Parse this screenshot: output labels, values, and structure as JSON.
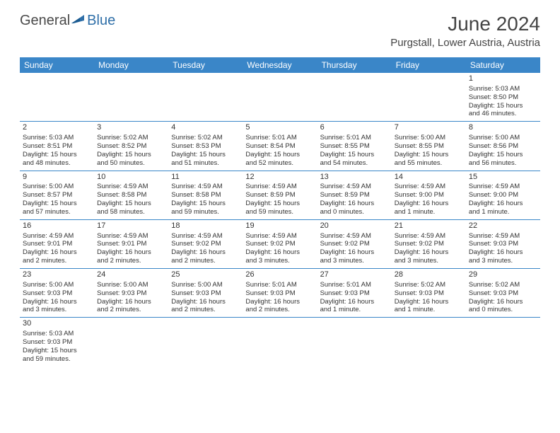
{
  "logo": {
    "part1": "General",
    "part2": "Blue"
  },
  "title": "June 2024",
  "location": "Purgstall, Lower Austria, Austria",
  "colors": {
    "header_bg": "#3a86c8",
    "header_text": "#ffffff",
    "body_text": "#333333",
    "line": "#3a86c8",
    "logo_gray": "#4a4a4a",
    "logo_blue": "#2f6fa8"
  },
  "dayNames": [
    "Sunday",
    "Monday",
    "Tuesday",
    "Wednesday",
    "Thursday",
    "Friday",
    "Saturday"
  ],
  "weeks": [
    [
      null,
      null,
      null,
      null,
      null,
      null,
      {
        "d": "1",
        "sr": "Sunrise: 5:03 AM",
        "ss": "Sunset: 8:50 PM",
        "dl1": "Daylight: 15 hours",
        "dl2": "and 46 minutes."
      }
    ],
    [
      {
        "d": "2",
        "sr": "Sunrise: 5:03 AM",
        "ss": "Sunset: 8:51 PM",
        "dl1": "Daylight: 15 hours",
        "dl2": "and 48 minutes."
      },
      {
        "d": "3",
        "sr": "Sunrise: 5:02 AM",
        "ss": "Sunset: 8:52 PM",
        "dl1": "Daylight: 15 hours",
        "dl2": "and 50 minutes."
      },
      {
        "d": "4",
        "sr": "Sunrise: 5:02 AM",
        "ss": "Sunset: 8:53 PM",
        "dl1": "Daylight: 15 hours",
        "dl2": "and 51 minutes."
      },
      {
        "d": "5",
        "sr": "Sunrise: 5:01 AM",
        "ss": "Sunset: 8:54 PM",
        "dl1": "Daylight: 15 hours",
        "dl2": "and 52 minutes."
      },
      {
        "d": "6",
        "sr": "Sunrise: 5:01 AM",
        "ss": "Sunset: 8:55 PM",
        "dl1": "Daylight: 15 hours",
        "dl2": "and 54 minutes."
      },
      {
        "d": "7",
        "sr": "Sunrise: 5:00 AM",
        "ss": "Sunset: 8:55 PM",
        "dl1": "Daylight: 15 hours",
        "dl2": "and 55 minutes."
      },
      {
        "d": "8",
        "sr": "Sunrise: 5:00 AM",
        "ss": "Sunset: 8:56 PM",
        "dl1": "Daylight: 15 hours",
        "dl2": "and 56 minutes."
      }
    ],
    [
      {
        "d": "9",
        "sr": "Sunrise: 5:00 AM",
        "ss": "Sunset: 8:57 PM",
        "dl1": "Daylight: 15 hours",
        "dl2": "and 57 minutes."
      },
      {
        "d": "10",
        "sr": "Sunrise: 4:59 AM",
        "ss": "Sunset: 8:58 PM",
        "dl1": "Daylight: 15 hours",
        "dl2": "and 58 minutes."
      },
      {
        "d": "11",
        "sr": "Sunrise: 4:59 AM",
        "ss": "Sunset: 8:58 PM",
        "dl1": "Daylight: 15 hours",
        "dl2": "and 59 minutes."
      },
      {
        "d": "12",
        "sr": "Sunrise: 4:59 AM",
        "ss": "Sunset: 8:59 PM",
        "dl1": "Daylight: 15 hours",
        "dl2": "and 59 minutes."
      },
      {
        "d": "13",
        "sr": "Sunrise: 4:59 AM",
        "ss": "Sunset: 8:59 PM",
        "dl1": "Daylight: 16 hours",
        "dl2": "and 0 minutes."
      },
      {
        "d": "14",
        "sr": "Sunrise: 4:59 AM",
        "ss": "Sunset: 9:00 PM",
        "dl1": "Daylight: 16 hours",
        "dl2": "and 1 minute."
      },
      {
        "d": "15",
        "sr": "Sunrise: 4:59 AM",
        "ss": "Sunset: 9:00 PM",
        "dl1": "Daylight: 16 hours",
        "dl2": "and 1 minute."
      }
    ],
    [
      {
        "d": "16",
        "sr": "Sunrise: 4:59 AM",
        "ss": "Sunset: 9:01 PM",
        "dl1": "Daylight: 16 hours",
        "dl2": "and 2 minutes."
      },
      {
        "d": "17",
        "sr": "Sunrise: 4:59 AM",
        "ss": "Sunset: 9:01 PM",
        "dl1": "Daylight: 16 hours",
        "dl2": "and 2 minutes."
      },
      {
        "d": "18",
        "sr": "Sunrise: 4:59 AM",
        "ss": "Sunset: 9:02 PM",
        "dl1": "Daylight: 16 hours",
        "dl2": "and 2 minutes."
      },
      {
        "d": "19",
        "sr": "Sunrise: 4:59 AM",
        "ss": "Sunset: 9:02 PM",
        "dl1": "Daylight: 16 hours",
        "dl2": "and 3 minutes."
      },
      {
        "d": "20",
        "sr": "Sunrise: 4:59 AM",
        "ss": "Sunset: 9:02 PM",
        "dl1": "Daylight: 16 hours",
        "dl2": "and 3 minutes."
      },
      {
        "d": "21",
        "sr": "Sunrise: 4:59 AM",
        "ss": "Sunset: 9:02 PM",
        "dl1": "Daylight: 16 hours",
        "dl2": "and 3 minutes."
      },
      {
        "d": "22",
        "sr": "Sunrise: 4:59 AM",
        "ss": "Sunset: 9:03 PM",
        "dl1": "Daylight: 16 hours",
        "dl2": "and 3 minutes."
      }
    ],
    [
      {
        "d": "23",
        "sr": "Sunrise: 5:00 AM",
        "ss": "Sunset: 9:03 PM",
        "dl1": "Daylight: 16 hours",
        "dl2": "and 3 minutes."
      },
      {
        "d": "24",
        "sr": "Sunrise: 5:00 AM",
        "ss": "Sunset: 9:03 PM",
        "dl1": "Daylight: 16 hours",
        "dl2": "and 2 minutes."
      },
      {
        "d": "25",
        "sr": "Sunrise: 5:00 AM",
        "ss": "Sunset: 9:03 PM",
        "dl1": "Daylight: 16 hours",
        "dl2": "and 2 minutes."
      },
      {
        "d": "26",
        "sr": "Sunrise: 5:01 AM",
        "ss": "Sunset: 9:03 PM",
        "dl1": "Daylight: 16 hours",
        "dl2": "and 2 minutes."
      },
      {
        "d": "27",
        "sr": "Sunrise: 5:01 AM",
        "ss": "Sunset: 9:03 PM",
        "dl1": "Daylight: 16 hours",
        "dl2": "and 1 minute."
      },
      {
        "d": "28",
        "sr": "Sunrise: 5:02 AM",
        "ss": "Sunset: 9:03 PM",
        "dl1": "Daylight: 16 hours",
        "dl2": "and 1 minute."
      },
      {
        "d": "29",
        "sr": "Sunrise: 5:02 AM",
        "ss": "Sunset: 9:03 PM",
        "dl1": "Daylight: 16 hours",
        "dl2": "and 0 minutes."
      }
    ],
    [
      {
        "d": "30",
        "sr": "Sunrise: 5:03 AM",
        "ss": "Sunset: 9:03 PM",
        "dl1": "Daylight: 15 hours",
        "dl2": "and 59 minutes."
      },
      null,
      null,
      null,
      null,
      null,
      null
    ]
  ]
}
